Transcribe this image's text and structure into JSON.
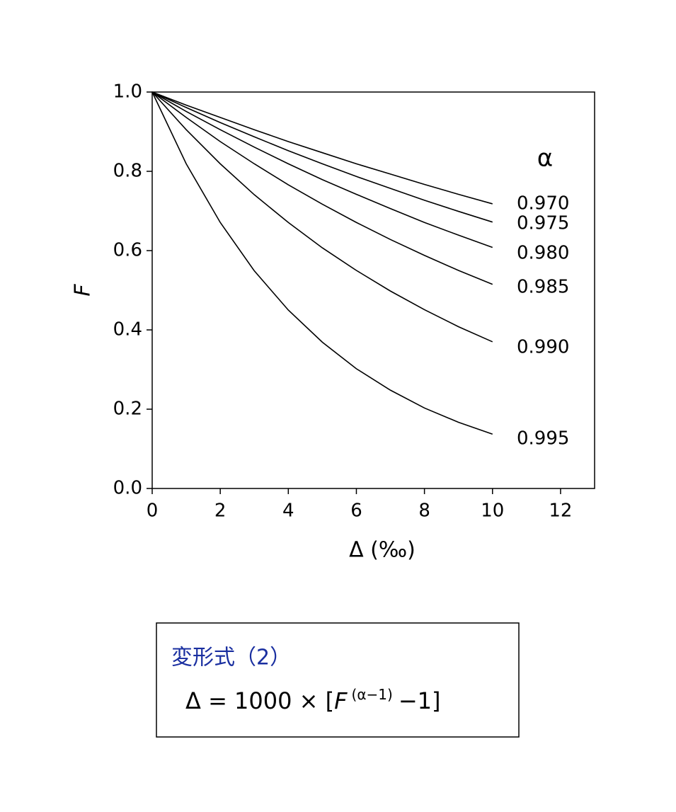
{
  "chart_data": {
    "type": "line",
    "x_label": "Δ (‰)",
    "y_label": "F",
    "legend_title": "α",
    "x": [
      0,
      1,
      2,
      3,
      4,
      5,
      6,
      7,
      8,
      9,
      10
    ],
    "series": [
      {
        "name": "0.970",
        "color": "#000000",
        "values": [
          1,
          0.967,
          0.936,
          0.905,
          0.875,
          0.847,
          0.819,
          0.793,
          0.767,
          0.742,
          0.718
        ]
      },
      {
        "name": "0.975",
        "color": "#000000",
        "values": [
          1,
          0.961,
          0.923,
          0.887,
          0.852,
          0.819,
          0.787,
          0.757,
          0.727,
          0.699,
          0.672
        ]
      },
      {
        "name": "0.980",
        "color": "#000000",
        "values": [
          1,
          0.951,
          0.905,
          0.861,
          0.819,
          0.779,
          0.742,
          0.706,
          0.671,
          0.639,
          0.608
        ]
      },
      {
        "name": "0.985",
        "color": "#000000",
        "values": [
          1,
          0.936,
          0.875,
          0.819,
          0.766,
          0.717,
          0.671,
          0.628,
          0.588,
          0.55,
          0.515
        ]
      },
      {
        "name": "0.990",
        "color": "#000000",
        "values": [
          1,
          0.905,
          0.819,
          0.741,
          0.671,
          0.607,
          0.55,
          0.498,
          0.451,
          0.408,
          0.37
        ]
      },
      {
        "name": "0.995",
        "color": "#000000",
        "values": [
          1,
          0.819,
          0.671,
          0.549,
          0.45,
          0.369,
          0.302,
          0.248,
          0.203,
          0.167,
          0.137
        ]
      }
    ],
    "xlim": [
      0,
      13
    ],
    "xticks": [
      0,
      2,
      4,
      6,
      8,
      10,
      12
    ],
    "ylim": [
      0,
      1
    ],
    "yticks": [
      {
        "value": 0,
        "label": "0.0"
      },
      0.2,
      0.4,
      0.6,
      0.8,
      {
        "value": 1,
        "label": "1.0"
      }
    ],
    "grid": false
  },
  "formula_box": {
    "title": "変形式（2）",
    "formula": {
      "lhs": "Δ = 1000 × [",
      "base": "F",
      "exponent": "(α−1)",
      "rhs": "−1]"
    }
  }
}
